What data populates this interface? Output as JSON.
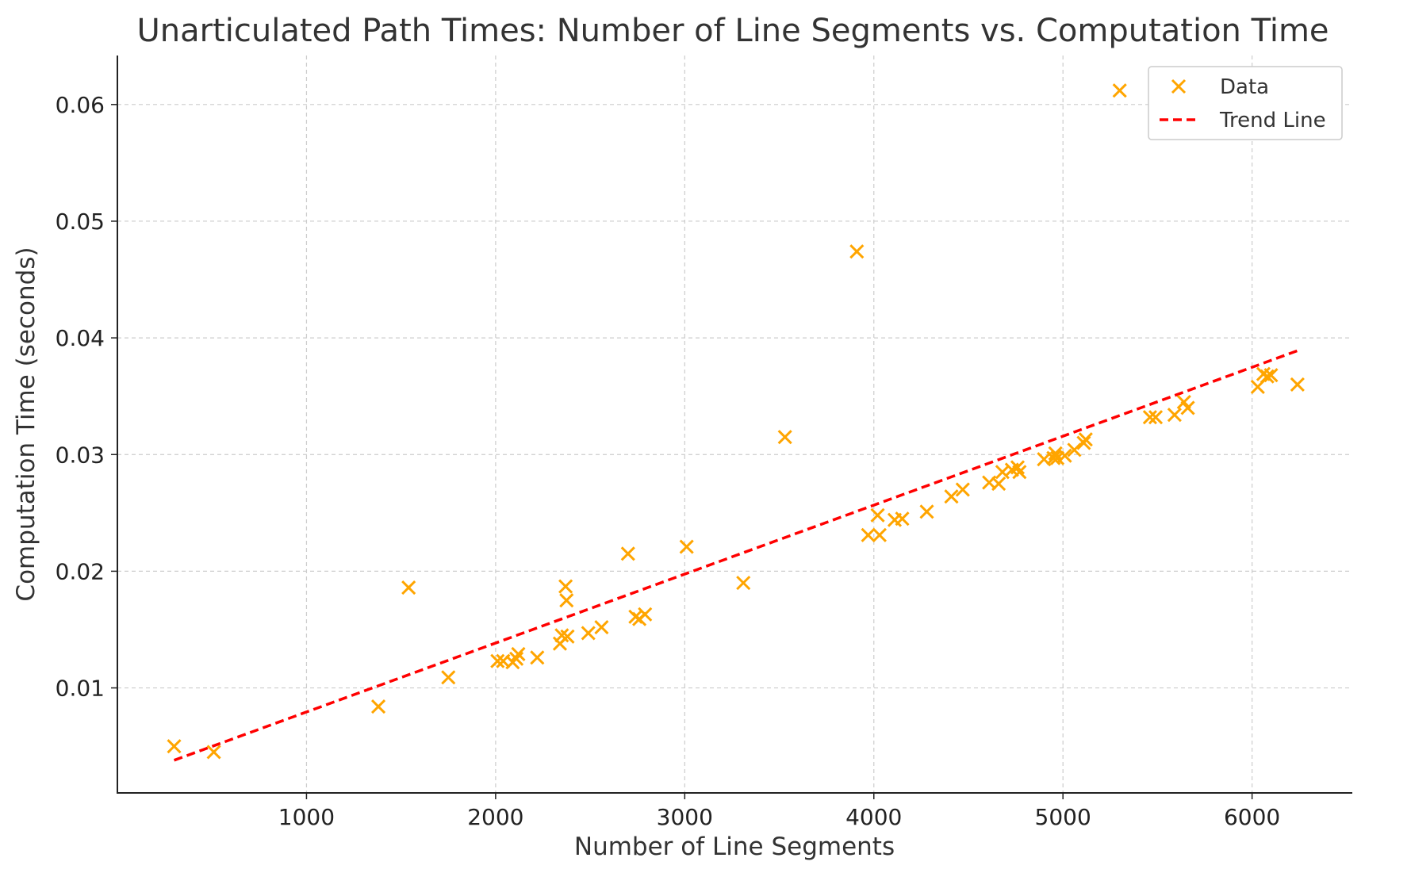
{
  "chart_data": {
    "type": "scatter",
    "title": "Unarticulated Path Times: Number of Line Segments vs. Computation Time",
    "xlabel": "Number of Line Segments",
    "ylabel": "Computation Time (seconds)",
    "xlim": [
      0,
      6530
    ],
    "ylim": [
      0.001,
      0.0642
    ],
    "xticks": [
      1000,
      2000,
      3000,
      4000,
      5000,
      6000
    ],
    "yticks": [
      0.01,
      0.02,
      0.03,
      0.04,
      0.05,
      0.06
    ],
    "xtick_labels": [
      "1000",
      "2000",
      "3000",
      "4000",
      "5000",
      "6000"
    ],
    "ytick_labels": [
      "0.01",
      "0.02",
      "0.03",
      "0.04",
      "0.05",
      "0.06"
    ],
    "grid": true,
    "legend_position": "top-right",
    "series": [
      {
        "name": "Data",
        "kind": "scatter",
        "marker": "x",
        "color": "#ffa500",
        "x": [
          300,
          510,
          1380,
          1540,
          1750,
          2010,
          2040,
          2090,
          2110,
          2120,
          2220,
          2340,
          2350,
          2370,
          2375,
          2380,
          2490,
          2560,
          2700,
          2740,
          2760,
          2790,
          3010,
          3310,
          3530,
          3910,
          3970,
          4020,
          4030,
          4110,
          4150,
          4280,
          4410,
          4470,
          4610,
          4660,
          4680,
          4730,
          4760,
          4770,
          4900,
          4950,
          4960,
          4970,
          5010,
          5060,
          5110,
          5120,
          5300,
          5460,
          5490,
          5590,
          5640,
          5660,
          6030,
          6060,
          6080,
          6100,
          6240
        ],
        "y": [
          0.005,
          0.0045,
          0.0084,
          0.0186,
          0.0109,
          0.0123,
          0.0123,
          0.0122,
          0.0125,
          0.0129,
          0.0126,
          0.0138,
          0.0145,
          0.0187,
          0.0175,
          0.0144,
          0.0147,
          0.0152,
          0.0215,
          0.0161,
          0.0159,
          0.0163,
          0.0221,
          0.019,
          0.0315,
          0.0474,
          0.0231,
          0.0248,
          0.0231,
          0.0244,
          0.0245,
          0.0251,
          0.0264,
          0.027,
          0.0276,
          0.0275,
          0.0285,
          0.0287,
          0.0289,
          0.0285,
          0.0296,
          0.0297,
          0.0301,
          0.0297,
          0.0299,
          0.0304,
          0.031,
          0.0313,
          0.0612,
          0.0332,
          0.0332,
          0.0334,
          0.0345,
          0.034,
          0.0358,
          0.0369,
          0.0367,
          0.0368,
          0.036
        ]
      },
      {
        "name": "Trend Line",
        "kind": "line",
        "style": "dashed",
        "color": "#ff0000",
        "x": [
          300,
          6240
        ],
        "y": [
          0.0038,
          0.0389
        ]
      }
    ]
  }
}
